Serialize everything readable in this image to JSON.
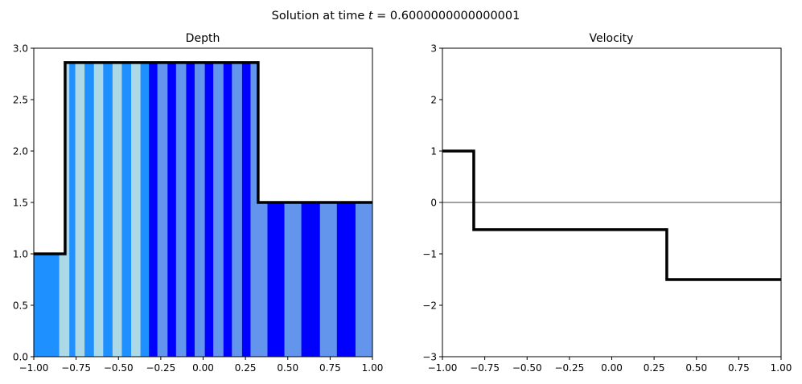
{
  "figure": {
    "suptitle_prefix": "Solution at time ",
    "suptitle_var": "t",
    "suptitle_eq": " = ",
    "suptitle_value": "0.6000000000000001"
  },
  "chart_data": [
    {
      "type": "area",
      "title": "Depth",
      "xlabel": "",
      "ylabel": "",
      "xlim": [
        -1.0,
        1.0
      ],
      "ylim": [
        0.0,
        3.0
      ],
      "xticks": [
        "−1.00",
        "−0.75",
        "−0.50",
        "−0.25",
        "0.00",
        "0.25",
        "0.50",
        "0.75",
        "1.00"
      ],
      "xtick_values": [
        -1.0,
        -0.75,
        -0.5,
        -0.25,
        0.0,
        0.25,
        0.5,
        0.75,
        1.0
      ],
      "yticks": [
        "0.0",
        "0.5",
        "1.0",
        "1.5",
        "2.0",
        "2.5",
        "3.0"
      ],
      "ytick_values": [
        0.0,
        0.5,
        1.0,
        1.5,
        2.0,
        2.5,
        3.0
      ],
      "grid": false,
      "step_line": {
        "x": [
          -1.0,
          -0.815,
          -0.815,
          0.325,
          0.325,
          1.0
        ],
        "y": [
          1.0,
          1.0,
          2.86,
          2.86,
          1.5,
          1.5
        ],
        "color": "#000000"
      },
      "stripe_colors": [
        "#1e90ff",
        "#add8e6",
        "#0000ff",
        "#6495ed"
      ],
      "stripes": [
        {
          "x0": -1.0,
          "x1": -0.85,
          "h": 1.0,
          "color": "#1e90ff"
        },
        {
          "x0": -0.85,
          "x1": -0.815,
          "h": 1.0,
          "color": "#add8e6"
        },
        {
          "x0": -0.815,
          "x1": -0.79,
          "h": 2.86,
          "color": "#add8e6"
        },
        {
          "x0": -0.79,
          "x1": -0.755,
          "h": 2.86,
          "color": "#1e90ff"
        },
        {
          "x0": -0.755,
          "x1": -0.7,
          "h": 2.86,
          "color": "#add8e6"
        },
        {
          "x0": -0.7,
          "x1": -0.645,
          "h": 2.86,
          "color": "#1e90ff"
        },
        {
          "x0": -0.645,
          "x1": -0.59,
          "h": 2.86,
          "color": "#add8e6"
        },
        {
          "x0": -0.59,
          "x1": -0.535,
          "h": 2.86,
          "color": "#1e90ff"
        },
        {
          "x0": -0.535,
          "x1": -0.48,
          "h": 2.86,
          "color": "#add8e6"
        },
        {
          "x0": -0.48,
          "x1": -0.425,
          "h": 2.86,
          "color": "#1e90ff"
        },
        {
          "x0": -0.425,
          "x1": -0.37,
          "h": 2.86,
          "color": "#add8e6"
        },
        {
          "x0": -0.37,
          "x1": -0.32,
          "h": 2.86,
          "color": "#1e90ff"
        },
        {
          "x0": -0.32,
          "x1": -0.27,
          "h": 2.86,
          "color": "#0000ff"
        },
        {
          "x0": -0.27,
          "x1": -0.21,
          "h": 2.86,
          "color": "#6495ed"
        },
        {
          "x0": -0.21,
          "x1": -0.16,
          "h": 2.86,
          "color": "#0000ff"
        },
        {
          "x0": -0.16,
          "x1": -0.1,
          "h": 2.86,
          "color": "#6495ed"
        },
        {
          "x0": -0.1,
          "x1": -0.05,
          "h": 2.86,
          "color": "#0000ff"
        },
        {
          "x0": -0.05,
          "x1": 0.01,
          "h": 2.86,
          "color": "#6495ed"
        },
        {
          "x0": 0.01,
          "x1": 0.06,
          "h": 2.86,
          "color": "#0000ff"
        },
        {
          "x0": 0.06,
          "x1": 0.12,
          "h": 2.86,
          "color": "#6495ed"
        },
        {
          "x0": 0.12,
          "x1": 0.17,
          "h": 2.86,
          "color": "#0000ff"
        },
        {
          "x0": 0.17,
          "x1": 0.23,
          "h": 2.86,
          "color": "#6495ed"
        },
        {
          "x0": 0.23,
          "x1": 0.28,
          "h": 2.86,
          "color": "#0000ff"
        },
        {
          "x0": 0.28,
          "x1": 0.325,
          "h": 2.86,
          "color": "#6495ed"
        },
        {
          "x0": 0.325,
          "x1": 0.38,
          "h": 1.5,
          "color": "#6495ed"
        },
        {
          "x0": 0.38,
          "x1": 0.48,
          "h": 1.5,
          "color": "#0000ff"
        },
        {
          "x0": 0.48,
          "x1": 0.58,
          "h": 1.5,
          "color": "#6495ed"
        },
        {
          "x0": 0.58,
          "x1": 0.69,
          "h": 1.5,
          "color": "#0000ff"
        },
        {
          "x0": 0.69,
          "x1": 0.79,
          "h": 1.5,
          "color": "#6495ed"
        },
        {
          "x0": 0.79,
          "x1": 0.9,
          "h": 1.5,
          "color": "#0000ff"
        },
        {
          "x0": 0.9,
          "x1": 1.0,
          "h": 1.5,
          "color": "#6495ed"
        }
      ]
    },
    {
      "type": "line",
      "title": "Velocity",
      "xlabel": "",
      "ylabel": "",
      "xlim": [
        -1.0,
        1.0
      ],
      "ylim": [
        -3.0,
        3.0
      ],
      "xticks": [
        "−1.00",
        "−0.75",
        "−0.50",
        "−0.25",
        "0.00",
        "0.25",
        "0.50",
        "0.75",
        "1.00"
      ],
      "xtick_values": [
        -1.0,
        -0.75,
        -0.5,
        -0.25,
        0.0,
        0.25,
        0.5,
        0.75,
        1.0
      ],
      "yticks": [
        "−3",
        "−2",
        "−1",
        "0",
        "1",
        "2",
        "3"
      ],
      "ytick_values": [
        -3,
        -2,
        -1,
        0,
        1,
        2,
        3
      ],
      "grid": false,
      "zero_line": {
        "y": 0,
        "color": "#808080"
      },
      "step_line": {
        "x": [
          -1.0,
          -0.815,
          -0.815,
          0.325,
          0.325,
          1.0
        ],
        "y": [
          1.0,
          1.0,
          -0.53,
          -0.53,
          -1.5,
          -1.5
        ],
        "color": "#000000"
      }
    }
  ]
}
